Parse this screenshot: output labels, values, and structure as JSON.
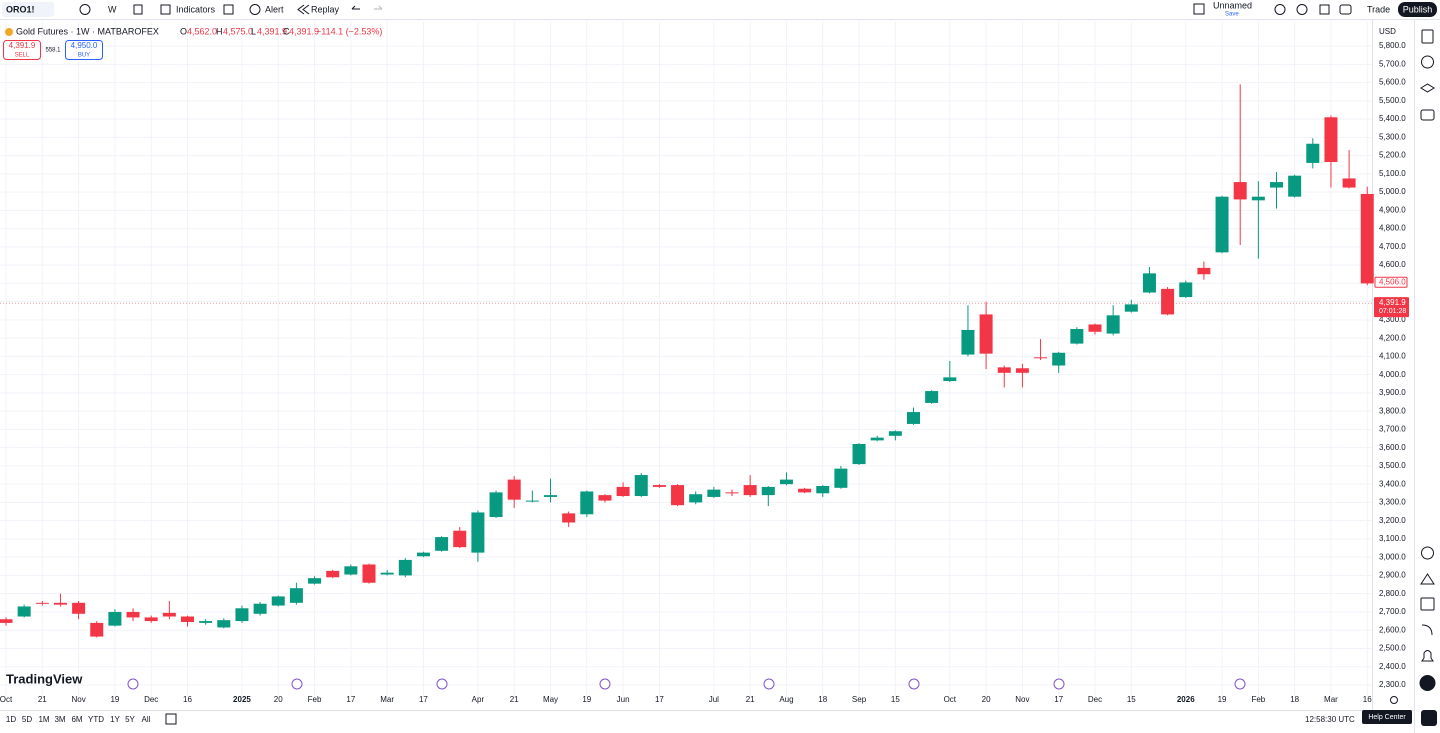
{
  "toolbar": {
    "symbol": "ORO1!",
    "interval": "W",
    "indicators": "Indicators",
    "alert": "Alert",
    "replay": "Replay",
    "layout_name": "Unnamed",
    "save": "Save",
    "trade": "Trade",
    "publish": "Publish"
  },
  "legend": {
    "title": "Gold Futures · 1W · MATBAROFEX",
    "o_label": "O",
    "open": "4,562.0",
    "h_label": "H",
    "high": "4,575.0",
    "l_label": "L",
    "low": "4,391.9",
    "c_label": "C",
    "close": "4,391.9",
    "change": "−114.1 (−2.53%)"
  },
  "trade_buttons": {
    "sell_price": "4,391.9",
    "sell": "SELL",
    "spread": "558.1",
    "buy_price": "4,950.0",
    "buy": "BUY"
  },
  "currency": "USD",
  "branding": "TradingView",
  "ranges": [
    "1D",
    "5D",
    "1M",
    "3M",
    "6M",
    "YTD",
    "1Y",
    "5Y",
    "All"
  ],
  "clock": "12:58:30 UTC",
  "help": "Help Center",
  "chart_data": {
    "type": "candlestick",
    "up_color": "#089981",
    "down_color": "#f23645",
    "categories": [
      "Oct",
      null,
      "21",
      null,
      "Nov",
      null,
      "19",
      null,
      "Dec",
      null,
      "16",
      null,
      null,
      "2025",
      null,
      "20",
      null,
      "Feb",
      null,
      "17",
      null,
      "Mar",
      null,
      "17",
      null,
      null,
      "Apr",
      null,
      "21",
      null,
      "May",
      null,
      "19",
      null,
      "Jun",
      null,
      "17",
      null,
      null,
      "Jul",
      null,
      "21",
      null,
      "Aug",
      null,
      "18",
      null,
      "Sep",
      null,
      "15",
      null,
      null,
      "Oct",
      null,
      "20",
      null,
      "Nov",
      null,
      "17",
      null,
      "Dec",
      null,
      "15",
      null,
      null,
      "2026",
      null,
      "19",
      null,
      "Feb",
      null,
      "18",
      null,
      "Mar",
      null,
      "16"
    ],
    "open": [
      2660,
      2675,
      2750,
      2750,
      2750,
      2640,
      2625,
      2700,
      2670,
      2695,
      2675,
      2640,
      2615,
      2650,
      2690,
      2735,
      2750,
      2855,
      2925,
      2905,
      2960,
      2905,
      2900,
      3005,
      3035,
      3145,
      3025,
      3220,
      3425,
      3305,
      3330,
      3240,
      3235,
      3340,
      3385,
      3335,
      3395,
      3395,
      3300,
      3330,
      3355,
      3395,
      3340,
      3400,
      3375,
      3350,
      3380,
      3510,
      3640,
      3665,
      3730,
      3845,
      3965,
      4110,
      4330,
      4040,
      4035,
      4095,
      4050,
      4170,
      4275,
      4225,
      4345,
      4450,
      4470,
      4425,
      4585,
      4670,
      5055,
      4955,
      5025,
      4975,
      5160,
      5410,
      5075,
      4990
    ],
    "high": [
      2670,
      2740,
      2760,
      2800,
      2760,
      2650,
      2715,
      2720,
      2680,
      2760,
      2680,
      2660,
      2665,
      2735,
      2755,
      2790,
      2860,
      2895,
      2930,
      2960,
      2965,
      2930,
      2995,
      3030,
      3115,
      3165,
      3255,
      3365,
      3445,
      3365,
      3430,
      3250,
      3365,
      3345,
      3410,
      3460,
      3400,
      3400,
      3360,
      3385,
      3370,
      3450,
      3390,
      3465,
      3380,
      3395,
      3500,
      3625,
      3665,
      3695,
      3820,
      3915,
      4075,
      4380,
      4400,
      4050,
      4060,
      4195,
      4125,
      4260,
      4280,
      4380,
      4410,
      4590,
      4480,
      4515,
      4620,
      4980,
      5590,
      5060,
      5110,
      5095,
      5295,
      5420,
      5230,
      5030
    ],
    "low": [
      2625,
      2670,
      2735,
      2730,
      2660,
      2560,
      2620,
      2650,
      2640,
      2660,
      2620,
      2630,
      2610,
      2640,
      2680,
      2730,
      2740,
      2850,
      2885,
      2900,
      2855,
      2900,
      2890,
      3000,
      3030,
      3050,
      2975,
      3215,
      3270,
      3300,
      3300,
      3165,
      3220,
      3300,
      3330,
      3330,
      3380,
      3280,
      3290,
      3325,
      3335,
      3330,
      3280,
      3395,
      3350,
      3330,
      3375,
      3505,
      3635,
      3640,
      3725,
      3840,
      3960,
      4100,
      4030,
      3930,
      3930,
      4080,
      4010,
      4165,
      4220,
      4215,
      4340,
      4445,
      4325,
      4420,
      4520,
      4665,
      4710,
      4635,
      4910,
      4970,
      5130,
      5025,
      5020,
      4490
    ],
    "close": [
      2640,
      2730,
      2745,
      2740,
      2690,
      2565,
      2700,
      2670,
      2650,
      2675,
      2645,
      2650,
      2655,
      2720,
      2745,
      2785,
      2830,
      2885,
      2890,
      2950,
      2860,
      2915,
      2985,
      3025,
      3110,
      3055,
      3245,
      3355,
      3315,
      3310,
      3340,
      3190,
      3360,
      3310,
      3335,
      3450,
      3385,
      3285,
      3345,
      3370,
      3350,
      3340,
      3385,
      3425,
      3355,
      3390,
      3485,
      3620,
      3655,
      3690,
      3795,
      3910,
      3985,
      4245,
      4115,
      4010,
      4010,
      4090,
      4120,
      4250,
      4235,
      4325,
      4385,
      4555,
      4330,
      4505,
      4550,
      4975,
      4960,
      4975,
      5055,
      5090,
      5265,
      5165,
      5025,
      4500
    ],
    "ylim": [
      2234,
      5932
    ],
    "yticks": [
      {
        "value": 2300,
        "label": "2,300.0"
      },
      {
        "value": 2400,
        "label": "2,400.0"
      },
      {
        "value": 2500,
        "label": "2,500.0"
      },
      {
        "value": 2600,
        "label": "2,600.0"
      },
      {
        "value": 2700,
        "label": "2,700.0"
      },
      {
        "value": 2800,
        "label": "2,800.0"
      },
      {
        "value": 2900,
        "label": "2,900.0"
      },
      {
        "value": 3000,
        "label": "3,000.0"
      },
      {
        "value": 3100,
        "label": "3,100.0"
      },
      {
        "value": 3200,
        "label": "3,200.0"
      },
      {
        "value": 3300,
        "label": "3,300.0"
      },
      {
        "value": 3400,
        "label": "3,400.0"
      },
      {
        "value": 3500,
        "label": "3,500.0"
      },
      {
        "value": 3600,
        "label": "3,600.0"
      },
      {
        "value": 3700,
        "label": "3,700.0"
      },
      {
        "value": 3800,
        "label": "3,800.0"
      },
      {
        "value": 3900,
        "label": "3,900.0"
      },
      {
        "value": 4000,
        "label": "4,000.0"
      },
      {
        "value": 4100,
        "label": "4,100.0"
      },
      {
        "value": 4200,
        "label": "4,200.0"
      },
      {
        "value": 4300,
        "label": "4,300.0"
      },
      {
        "value": 4400,
        "label": "4,400.0"
      },
      {
        "value": 4500,
        "label": "4,500.0"
      },
      {
        "value": 4600,
        "label": "4,600.0"
      },
      {
        "value": 4700,
        "label": "4,700.0"
      },
      {
        "value": 4800,
        "label": "4,800.0"
      },
      {
        "value": 4900,
        "label": "4,900.0"
      },
      {
        "value": 5000,
        "label": "5,000.0"
      },
      {
        "value": 5100,
        "label": "5,100.0"
      },
      {
        "value": 5200,
        "label": "5,200.0"
      },
      {
        "value": 5300,
        "label": "5,300.0"
      },
      {
        "value": 5400,
        "label": "5,400.0"
      },
      {
        "value": 5500,
        "label": "5,500.0"
      },
      {
        "value": 5600,
        "label": "5,600.0"
      },
      {
        "value": 5700,
        "label": "5,700.0"
      },
      {
        "value": 5800,
        "label": "5,800.0"
      }
    ],
    "grid": true,
    "last_price": {
      "value": 4391.9,
      "label": "4,391.9"
    },
    "countdown": "07:01:28",
    "marker_price": {
      "value": 4506,
      "label": "4,506.0"
    }
  }
}
